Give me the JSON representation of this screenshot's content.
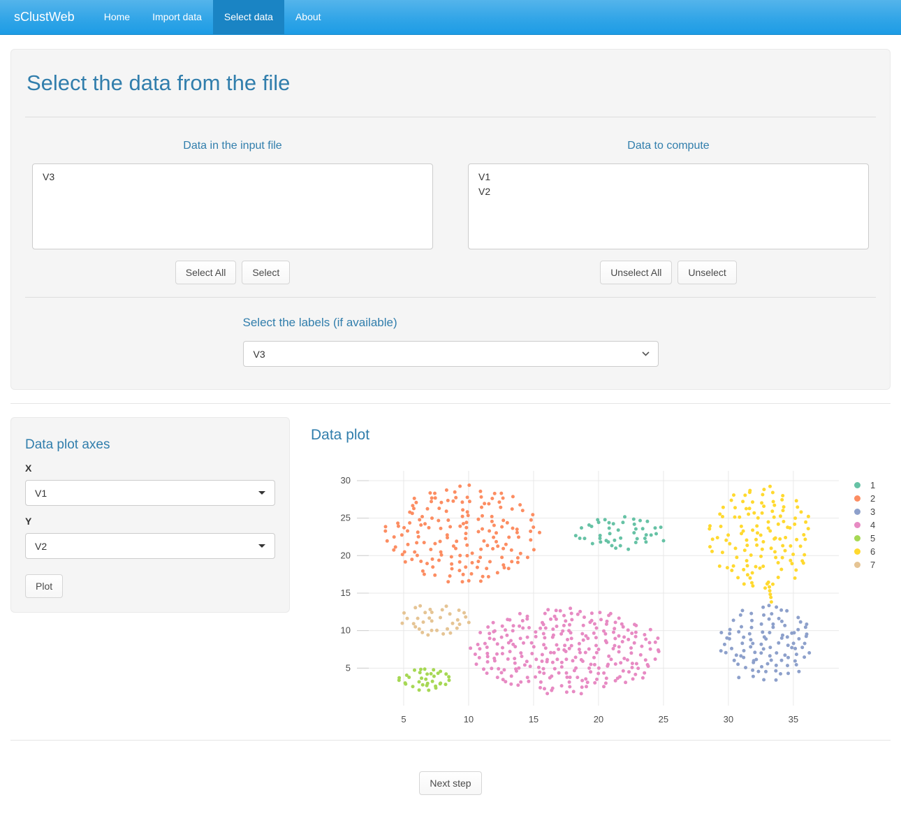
{
  "theme": {
    "accent": "#317eac",
    "navbar_top": "#54b4eb",
    "navbar_mid": "#2fa4e7",
    "navbar_bottom": "#1d9ce5",
    "navbar_border": "#178acc",
    "navbar_active": "#1a84c4"
  },
  "navbar": {
    "brand": "sClustWeb",
    "items": [
      {
        "label": "Home",
        "active": false
      },
      {
        "label": "Import data",
        "active": false
      },
      {
        "label": "Select data",
        "active": true
      },
      {
        "label": "About",
        "active": false
      }
    ]
  },
  "select_panel": {
    "title": "Select the data from the file",
    "input_file": {
      "title": "Data in the input file",
      "items": [
        "V3"
      ],
      "buttons": [
        "Select All",
        "Select"
      ]
    },
    "compute": {
      "title": "Data to compute",
      "items": [
        "V1",
        "V2"
      ],
      "buttons": [
        "Unselect All",
        "Unselect"
      ]
    },
    "labels_section": {
      "title": "Select the labels (if available)",
      "selected": "V3"
    }
  },
  "axes_panel": {
    "title": "Data plot axes",
    "x_label": "X",
    "x_value": "V1",
    "y_label": "Y",
    "y_value": "V2",
    "plot_button": "Plot"
  },
  "plot_section": {
    "title": "Data plot"
  },
  "footer": {
    "next_button": "Next step"
  },
  "chart_data": {
    "type": "scatter",
    "title": "",
    "xlabel": "",
    "ylabel": "",
    "xlim": [
      1.4,
      38.5
    ],
    "ylim": [
      0,
      31.3
    ],
    "xticks": [
      5,
      10,
      15,
      20,
      25,
      30,
      35
    ],
    "yticks": [
      5,
      10,
      15,
      20,
      25,
      30
    ],
    "grid": true,
    "grid_color": "#e8e8e8",
    "tick_color": "#4d4d4d",
    "point_radius_px": 2.5,
    "legend_position": "right",
    "representation": "each series is a uniform elliptical cluster blob: center [x,y], radii rx/ry, point count; optional tail is a bridge of points",
    "series": [
      {
        "name": "1",
        "color": "#66c2a5",
        "count": 45,
        "center": [
          21.65,
          23.0
        ],
        "rx": 3.35,
        "ry": 2.4
      },
      {
        "name": "2",
        "color": "#fc8d62",
        "count": 170,
        "center": [
          9.6,
          22.9
        ],
        "rx": 6.1,
        "ry": 6.5
      },
      {
        "name": "3",
        "color": "#8da0cb",
        "count": 102,
        "center": [
          33.05,
          8.3
        ],
        "rx": 3.65,
        "ry": 5.2
      },
      {
        "name": "4",
        "color": "#e78ac3",
        "count": 273,
        "center": [
          17.5,
          7.3
        ],
        "rx": 7.5,
        "ry": 5.7
      },
      {
        "name": "5",
        "color": "#a6d854",
        "count": 34,
        "center": [
          6.7,
          3.55
        ],
        "rx": 2.1,
        "ry": 1.55
      },
      {
        "name": "6",
        "color": "#ffd92f",
        "count": 124,
        "center": [
          32.6,
          22.45
        ],
        "rx": 4.0,
        "ry": 7.0,
        "tail": {
          "from": [
            33.0,
            16.4
          ],
          "to": [
            33.35,
            13.9
          ],
          "count": 6
        }
      },
      {
        "name": "7",
        "color": "#e5c494",
        "count": 34,
        "center": [
          7.6,
          11.55
        ],
        "rx": 2.7,
        "ry": 2.15
      }
    ]
  }
}
